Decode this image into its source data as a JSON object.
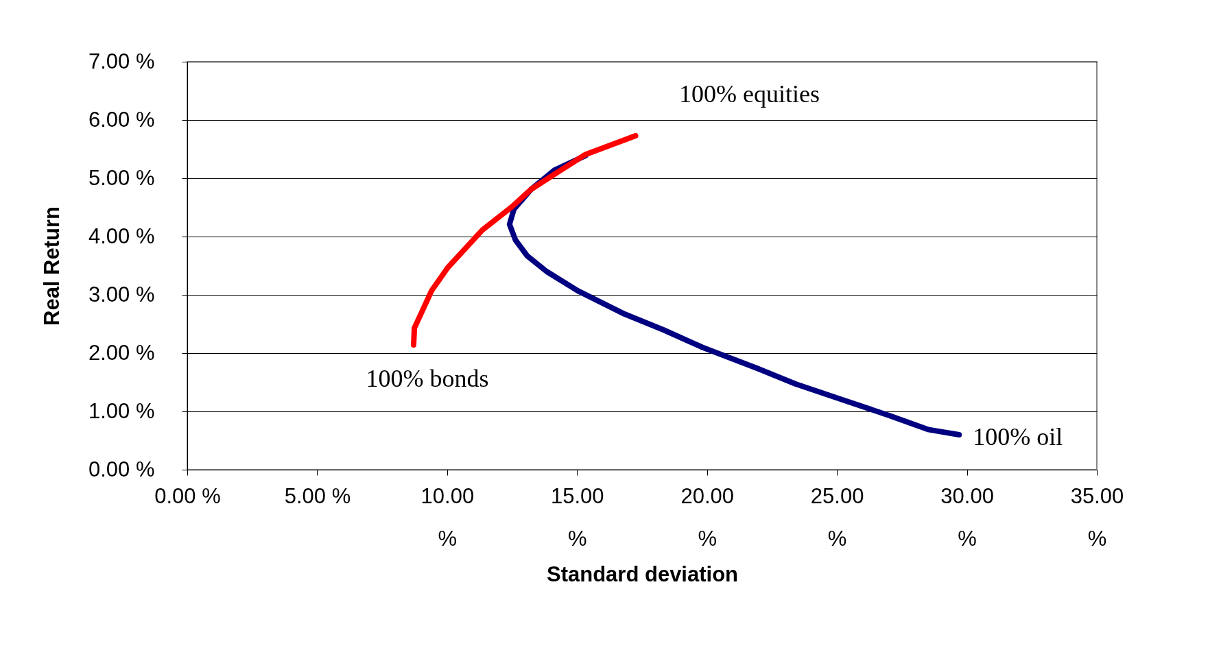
{
  "chart_data": {
    "type": "line",
    "xlabel": "Standard deviation",
    "ylabel": "Real Return",
    "xlim": [
      0,
      35
    ],
    "ylim": [
      0,
      7
    ],
    "xticks": [
      {
        "value": 0,
        "label": "0.00 %"
      },
      {
        "value": 5,
        "label": "5.00 %"
      },
      {
        "value": 10,
        "label": "10.00 %"
      },
      {
        "value": 15,
        "label": "15.00 %"
      },
      {
        "value": 20,
        "label": "20.00 %"
      },
      {
        "value": 25,
        "label": "25.00 %"
      },
      {
        "value": 30,
        "label": "30.00 %"
      },
      {
        "value": 35,
        "label": "35.00 %"
      }
    ],
    "yticks": [
      {
        "value": 0,
        "label": "0.00 %"
      },
      {
        "value": 1,
        "label": "1.00 %"
      },
      {
        "value": 2,
        "label": "2.00 %"
      },
      {
        "value": 3,
        "label": "3.00 %"
      },
      {
        "value": 4,
        "label": "4.00 %"
      },
      {
        "value": 5,
        "label": "5.00 %"
      },
      {
        "value": 6,
        "label": "6.00 %"
      },
      {
        "value": 7,
        "label": "7.00 %"
      }
    ],
    "grid": "y",
    "marker": "none",
    "line_style": "solid",
    "series": [
      {
        "color": "#000080",
        "x": [
          15.33,
          14.13,
          13.23,
          12.57,
          12.4,
          12.63,
          13.08,
          13.83,
          15.03,
          16.83,
          18.32,
          19.82,
          21.92,
          23.41,
          25.21,
          27.01,
          28.5,
          29.7
        ],
        "values": [
          5.39,
          5.14,
          4.81,
          4.47,
          4.21,
          3.94,
          3.67,
          3.4,
          3.07,
          2.67,
          2.4,
          2.1,
          1.74,
          1.47,
          1.2,
          0.93,
          0.69,
          0.6
        ]
      },
      {
        "color": "#ff0000",
        "x": [
          8.71,
          8.74,
          9.4,
          10.03,
          11.35,
          12.49,
          13.23,
          14.13,
          15.33,
          17.25
        ],
        "values": [
          2.14,
          2.43,
          3.07,
          3.47,
          4.11,
          4.51,
          4.81,
          5.07,
          5.41,
          5.73
        ]
      }
    ],
    "annotations": [
      {
        "text": "100% equities",
        "x": 17.25,
        "y": 5.73
      },
      {
        "text": "100% bonds",
        "x": 8.71,
        "y": 2.14
      },
      {
        "text": "100% oil",
        "x": 29.7,
        "y": 0.6
      }
    ]
  }
}
